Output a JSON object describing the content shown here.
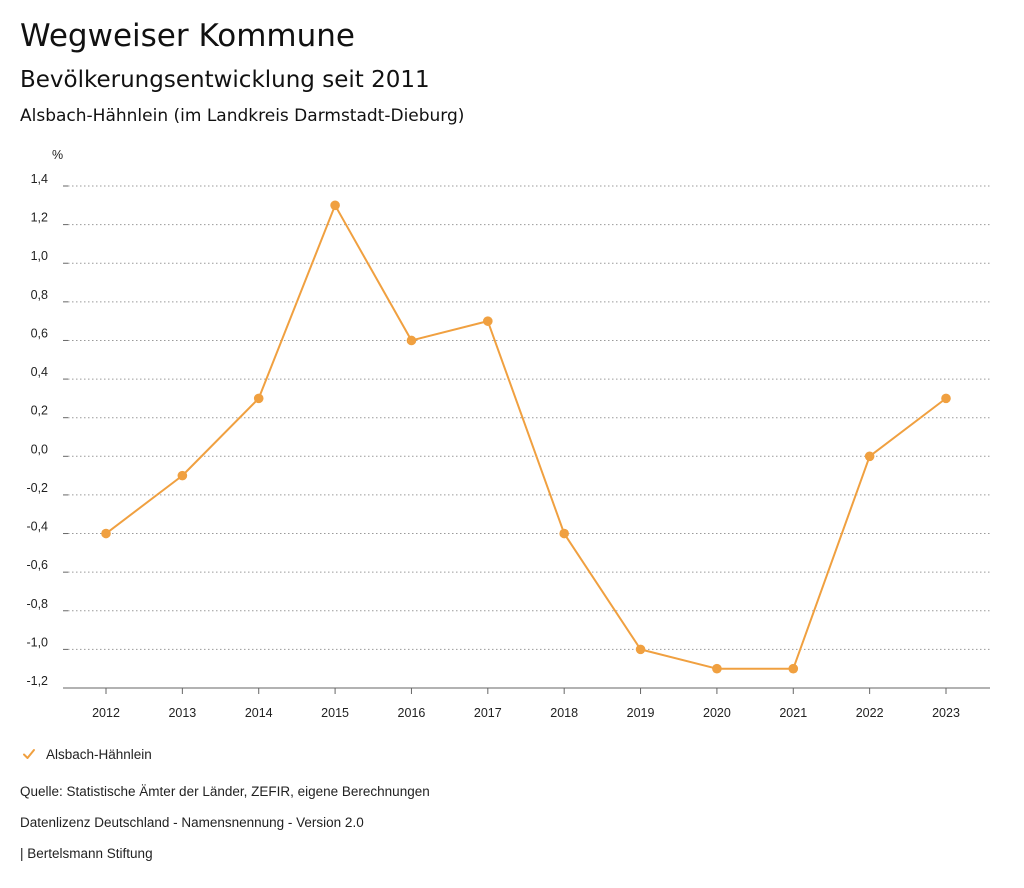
{
  "header": {
    "title": "Wegweiser Kommune",
    "subtitle": "Bevölkerungsentwicklung seit 2011",
    "region": "Alsbach-Hähnlein (im Landkreis Darmstadt-Dieburg)"
  },
  "chart_data": {
    "type": "line",
    "ylabel": "%",
    "x": [
      "2012",
      "2013",
      "2014",
      "2015",
      "2016",
      "2017",
      "2018",
      "2019",
      "2020",
      "2021",
      "2022",
      "2023"
    ],
    "series": [
      {
        "name": "Alsbach-Hähnlein",
        "color": "#f0a040",
        "values": [
          -0.4,
          -0.1,
          0.3,
          1.3,
          0.6,
          0.7,
          -0.4,
          -1.0,
          -1.1,
          -1.1,
          0.0,
          0.3
        ]
      }
    ],
    "ylim": [
      -1.2,
      1.4
    ],
    "yticks": [
      "1,4",
      "1,2",
      "1,0",
      "0,8",
      "0,6",
      "0,4",
      "0,2",
      "0,0",
      "-0,2",
      "-0,4",
      "-0,6",
      "-0,8",
      "-1,0",
      "-1,2"
    ],
    "grid": true,
    "legend_position": "bottom-left"
  },
  "legend": {
    "label": "Alsbach-Hähnlein",
    "icon": "check-icon"
  },
  "footer": {
    "source": "Quelle: Statistische Ämter der Länder, ZEFIR, eigene Berechnungen",
    "license": "Datenlizenz Deutschland - Namensnennung - Version 2.0",
    "publisher": "| Bertelsmann Stiftung"
  }
}
